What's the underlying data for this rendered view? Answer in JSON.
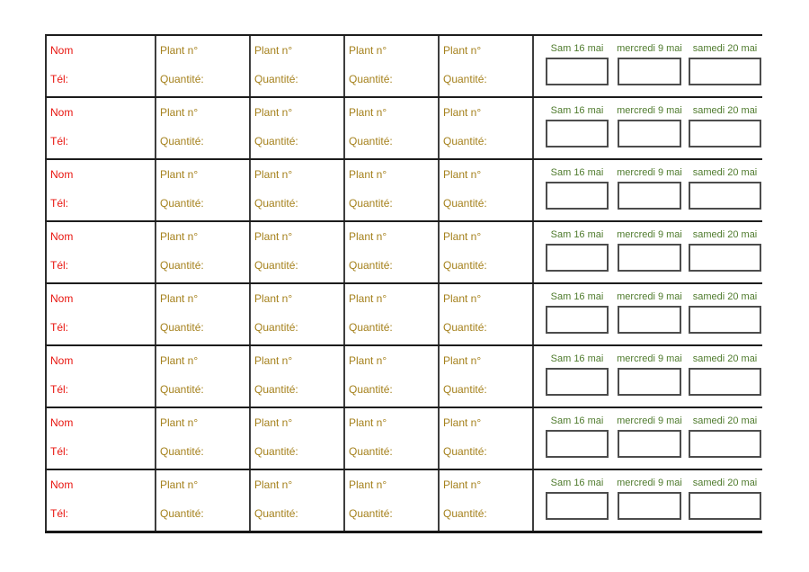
{
  "colors": {
    "name_text": "#e8150f",
    "plant_text": "#a5811c",
    "date_text": "#4f7b2d",
    "row_border": "#1c1c1c",
    "column_border": "#3d3d3d",
    "box_border": "#4c4c4c",
    "page_background": "#ffffff"
  },
  "rows": [
    {
      "name_label": "Nom",
      "phone_label": "Tél:",
      "plants": [
        {
          "number_label": "Plant n°",
          "quantity_label": "Quantité:"
        },
        {
          "number_label": "Plant n°",
          "quantity_label": "Quantité:"
        },
        {
          "number_label": "Plant n°",
          "quantity_label": "Quantité:"
        },
        {
          "number_label": "Plant n°",
          "quantity_label": "Quantité:"
        }
      ],
      "dates": [
        {
          "label": "Sam 16 mai"
        },
        {
          "label": "mercredi 9 mai"
        },
        {
          "label": "samedi 20 mai"
        }
      ]
    },
    {
      "name_label": "Nom",
      "phone_label": "Tél:",
      "plants": [
        {
          "number_label": "Plant n°",
          "quantity_label": "Quantité:"
        },
        {
          "number_label": "Plant n°",
          "quantity_label": "Quantité:"
        },
        {
          "number_label": "Plant n°",
          "quantity_label": "Quantité:"
        },
        {
          "number_label": "Plant n°",
          "quantity_label": "Quantité:"
        }
      ],
      "dates": [
        {
          "label": "Sam 16 mai"
        },
        {
          "label": "mercredi 9 mai"
        },
        {
          "label": "samedi 20 mai"
        }
      ]
    },
    {
      "name_label": "Nom",
      "phone_label": "Tél:",
      "plants": [
        {
          "number_label": "Plant n°",
          "quantity_label": "Quantité:"
        },
        {
          "number_label": "Plant n°",
          "quantity_label": "Quantité:"
        },
        {
          "number_label": "Plant n°",
          "quantity_label": "Quantité:"
        },
        {
          "number_label": "Plant n°",
          "quantity_label": "Quantité:"
        }
      ],
      "dates": [
        {
          "label": "Sam 16 mai"
        },
        {
          "label": "mercredi 9 mai"
        },
        {
          "label": "samedi 20 mai"
        }
      ]
    },
    {
      "name_label": "Nom",
      "phone_label": "Tél:",
      "plants": [
        {
          "number_label": "Plant n°",
          "quantity_label": "Quantité:"
        },
        {
          "number_label": "Plant n°",
          "quantity_label": "Quantité:"
        },
        {
          "number_label": "Plant n°",
          "quantity_label": "Quantité:"
        },
        {
          "number_label": "Plant n°",
          "quantity_label": "Quantité:"
        }
      ],
      "dates": [
        {
          "label": "Sam 16 mai"
        },
        {
          "label": "mercredi 9 mai"
        },
        {
          "label": "samedi 20 mai"
        }
      ]
    },
    {
      "name_label": "Nom",
      "phone_label": "Tél:",
      "plants": [
        {
          "number_label": "Plant n°",
          "quantity_label": "Quantité:"
        },
        {
          "number_label": "Plant n°",
          "quantity_label": "Quantité:"
        },
        {
          "number_label": "Plant n°",
          "quantity_label": "Quantité:"
        },
        {
          "number_label": "Plant n°",
          "quantity_label": "Quantité:"
        }
      ],
      "dates": [
        {
          "label": "Sam 16 mai"
        },
        {
          "label": "mercredi 9 mai"
        },
        {
          "label": "samedi 20 mai"
        }
      ]
    },
    {
      "name_label": "Nom",
      "phone_label": "Tél:",
      "plants": [
        {
          "number_label": "Plant n°",
          "quantity_label": "Quantité:"
        },
        {
          "number_label": "Plant n°",
          "quantity_label": "Quantité:"
        },
        {
          "number_label": "Plant n°",
          "quantity_label": "Quantité:"
        },
        {
          "number_label": "Plant n°",
          "quantity_label": "Quantité:"
        }
      ],
      "dates": [
        {
          "label": "Sam 16 mai"
        },
        {
          "label": "mercredi 9 mai"
        },
        {
          "label": "samedi 20 mai"
        }
      ]
    },
    {
      "name_label": "Nom",
      "phone_label": "Tél:",
      "plants": [
        {
          "number_label": "Plant n°",
          "quantity_label": "Quantité:"
        },
        {
          "number_label": "Plant n°",
          "quantity_label": "Quantité:"
        },
        {
          "number_label": "Plant n°",
          "quantity_label": "Quantité:"
        },
        {
          "number_label": "Plant n°",
          "quantity_label": "Quantité:"
        }
      ],
      "dates": [
        {
          "label": "Sam 16 mai"
        },
        {
          "label": "mercredi 9 mai"
        },
        {
          "label": "samedi 20 mai"
        }
      ]
    },
    {
      "name_label": "Nom",
      "phone_label": "Tél:",
      "plants": [
        {
          "number_label": "Plant n°",
          "quantity_label": "Quantité:"
        },
        {
          "number_label": "Plant n°",
          "quantity_label": "Quantité:"
        },
        {
          "number_label": "Plant n°",
          "quantity_label": "Quantité:"
        },
        {
          "number_label": "Plant n°",
          "quantity_label": "Quantité:"
        }
      ],
      "dates": [
        {
          "label": "Sam 16 mai"
        },
        {
          "label": "mercredi 9 mai"
        },
        {
          "label": "samedi 20 mai"
        }
      ]
    }
  ]
}
